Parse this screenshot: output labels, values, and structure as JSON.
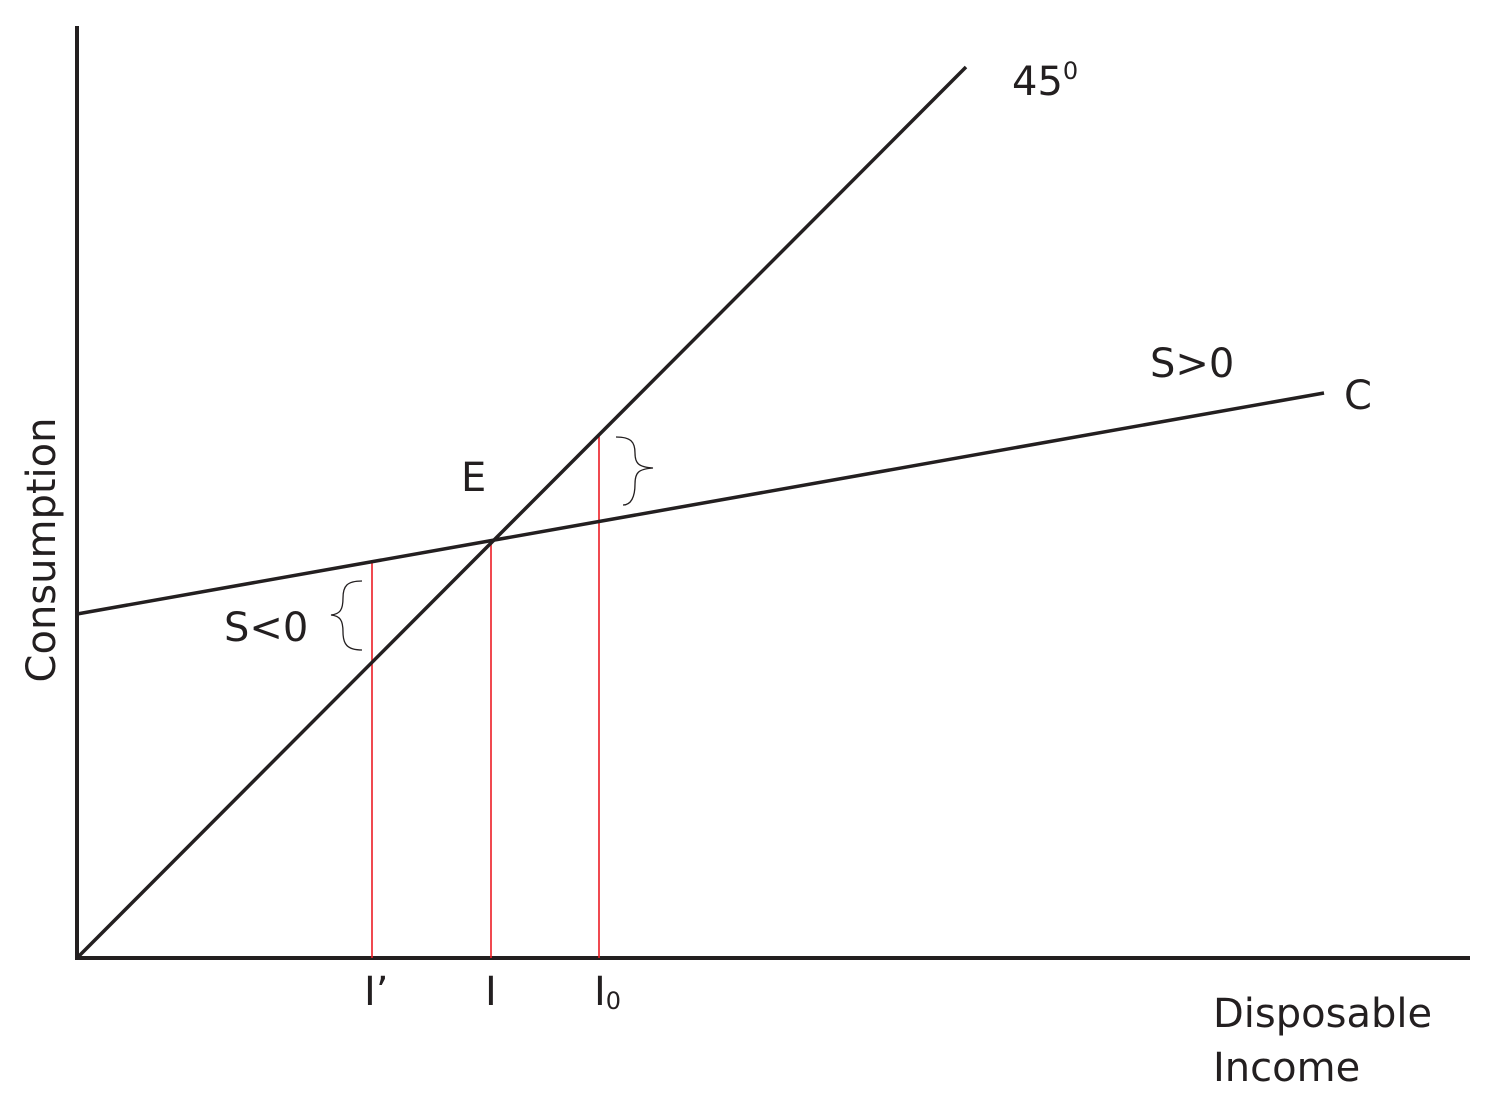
{
  "axes": {
    "y_label": "Consumption",
    "x_label_line1": "Disposable",
    "x_label_line2": "Income"
  },
  "lines": {
    "diagonal_label_base": "45",
    "diagonal_label_sup": "0",
    "consumption_label": "C"
  },
  "points": {
    "equilibrium": "E"
  },
  "annotations": {
    "saving_negative": "S<0",
    "saving_positive": "S>0"
  },
  "x_ticks": {
    "i_prime": "I’",
    "i": "I",
    "i0_base": "I",
    "i0_sub": "0"
  },
  "colors": {
    "ink": "#231f20",
    "guide": "#ed1c24"
  }
}
